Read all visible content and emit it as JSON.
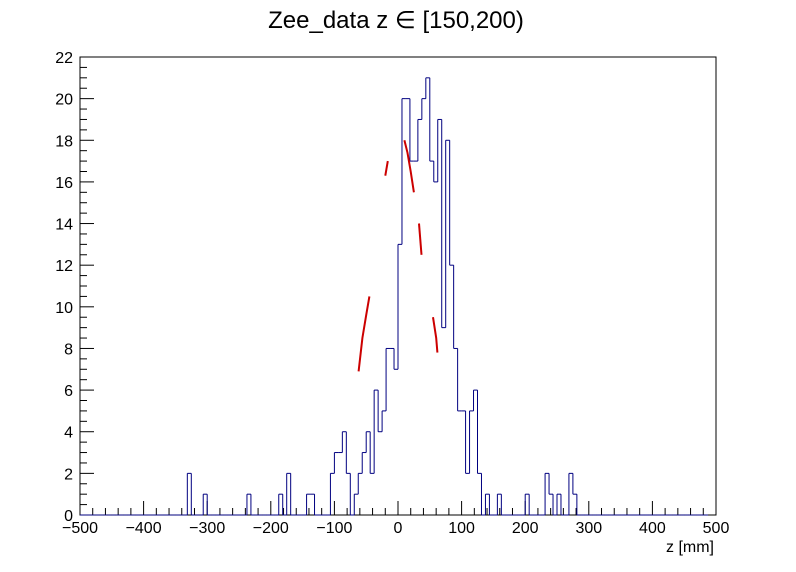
{
  "chart_data": {
    "type": "histogram",
    "title": "Zee_data z  ∈ [150,200)",
    "xlabel": "z [mm]",
    "ylabel": "",
    "xlim": [
      -500,
      500
    ],
    "ylim": [
      0,
      22
    ],
    "x_ticks": [
      "−500",
      "−400",
      "−300",
      "−200",
      "−100",
      "0",
      "100",
      "200",
      "300",
      "400",
      "500"
    ],
    "x_tick_values": [
      -500,
      -400,
      -300,
      -200,
      -100,
      0,
      100,
      200,
      300,
      400,
      500
    ],
    "y_ticks": [
      "0",
      "2",
      "4",
      "6",
      "8",
      "10",
      "12",
      "14",
      "16",
      "18",
      "20",
      "22"
    ],
    "y_tick_values": [
      0,
      2,
      4,
      6,
      8,
      10,
      12,
      14,
      16,
      18,
      20,
      22
    ],
    "grid": false,
    "legend": "none",
    "bin_width": 6.25,
    "bin_start": -500,
    "series": [
      {
        "kind": "histogram",
        "color": "#000080",
        "values": [
          0,
          0,
          0,
          0,
          0,
          0,
          0,
          0,
          0,
          0,
          0,
          0,
          0,
          0,
          0,
          0,
          0,
          0,
          0,
          0,
          0,
          0,
          0,
          0,
          0,
          0,
          0,
          2,
          0,
          0,
          0,
          1,
          0,
          0,
          0,
          0,
          0,
          0,
          0,
          0,
          0,
          0,
          1,
          0,
          0,
          0,
          0,
          0,
          0,
          0,
          1,
          0,
          2,
          0,
          0,
          0,
          0,
          1,
          1,
          0,
          0,
          0,
          0,
          2,
          3,
          3,
          4,
          2,
          0,
          1,
          2,
          3,
          4,
          2,
          6,
          4,
          5,
          8,
          8,
          7,
          13,
          20,
          20,
          17,
          17,
          19,
          20,
          21,
          17,
          16,
          19,
          9,
          18,
          12,
          8,
          5,
          5,
          2,
          5,
          6,
          2,
          0,
          1,
          0,
          0,
          1,
          0,
          0,
          0,
          0,
          0,
          0,
          1,
          0,
          0,
          0,
          0,
          2,
          1,
          0,
          1,
          0,
          0,
          2,
          1,
          0,
          0,
          0,
          0,
          0,
          0,
          0,
          0,
          0,
          0,
          0,
          0,
          0,
          0,
          0,
          0,
          0,
          0,
          0,
          0,
          0,
          0,
          0,
          0,
          0,
          0,
          0,
          0,
          0,
          0,
          0,
          0,
          0
        ]
      },
      {
        "kind": "fit-curve",
        "color": "#cc0000",
        "segments": [
          [
            [
              -62,
              6.9
            ],
            [
              -56,
              8.5
            ],
            [
              -50,
              9.6
            ],
            [
              -45,
              10.5
            ]
          ],
          [
            [
              -20,
              16.3
            ],
            [
              -16,
              17.0
            ]
          ],
          [
            [
              10,
              18.0
            ],
            [
              15,
              17.4
            ],
            [
              20,
              16.5
            ],
            [
              25,
              15.5
            ]
          ],
          [
            [
              33,
              14.0
            ],
            [
              37,
              12.5
            ]
          ],
          [
            [
              55,
              9.5
            ],
            [
              60,
              8.5
            ],
            [
              62,
              7.8
            ]
          ]
        ]
      }
    ]
  }
}
